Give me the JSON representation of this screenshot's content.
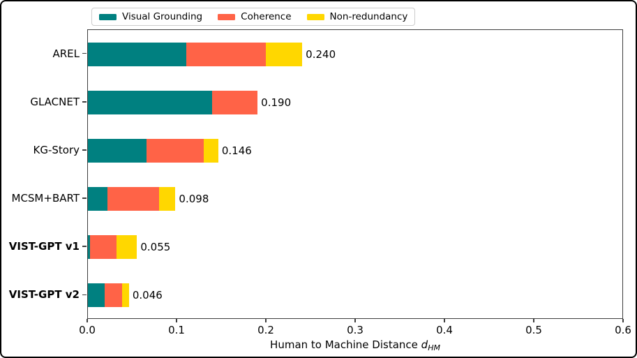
{
  "chart_data": {
    "type": "bar",
    "orientation": "horizontal",
    "stacked": true,
    "title": "",
    "xlabel": "Human to Machine Distance d_HM",
    "xlabel_text": "Human to Machine Distance ",
    "xlabel_var": "d",
    "xlabel_sub": "HM",
    "xlim": [
      0,
      0.6
    ],
    "xtick_labels": [
      "0.0",
      "0.1",
      "0.2",
      "0.3",
      "0.4",
      "0.5",
      "0.6"
    ],
    "grid": false,
    "legend_position": "top",
    "categories": [
      "AREL",
      "GLACNET",
      "KG-Story",
      "MCSM+BART",
      "VIST-GPT v1",
      "VIST-GPT v2"
    ],
    "category_bold": [
      false,
      false,
      false,
      false,
      true,
      true
    ],
    "series": [
      {
        "name": "Visual Grounding",
        "color": "#008080",
        "values": [
          0.11,
          0.139,
          0.066,
          0.022,
          0.002,
          0.019
        ]
      },
      {
        "name": "Coherence",
        "color": "#ff6347",
        "values": [
          0.089,
          0.051,
          0.064,
          0.058,
          0.03,
          0.019
        ]
      },
      {
        "name": "Non-redundancy",
        "color": "#ffd700",
        "values": [
          0.041,
          0.0,
          0.016,
          0.018,
          0.023,
          0.008
        ]
      }
    ],
    "totals": [
      0.24,
      0.19,
      0.146,
      0.098,
      0.055,
      0.046
    ],
    "total_labels": [
      "0.240",
      "0.190",
      "0.146",
      "0.098",
      "0.055",
      "0.046"
    ]
  },
  "colors": {
    "spine": "#3d3d3d",
    "figure_border": "#000000",
    "legend_border": "#cccccc",
    "background": "#ffffff"
  }
}
